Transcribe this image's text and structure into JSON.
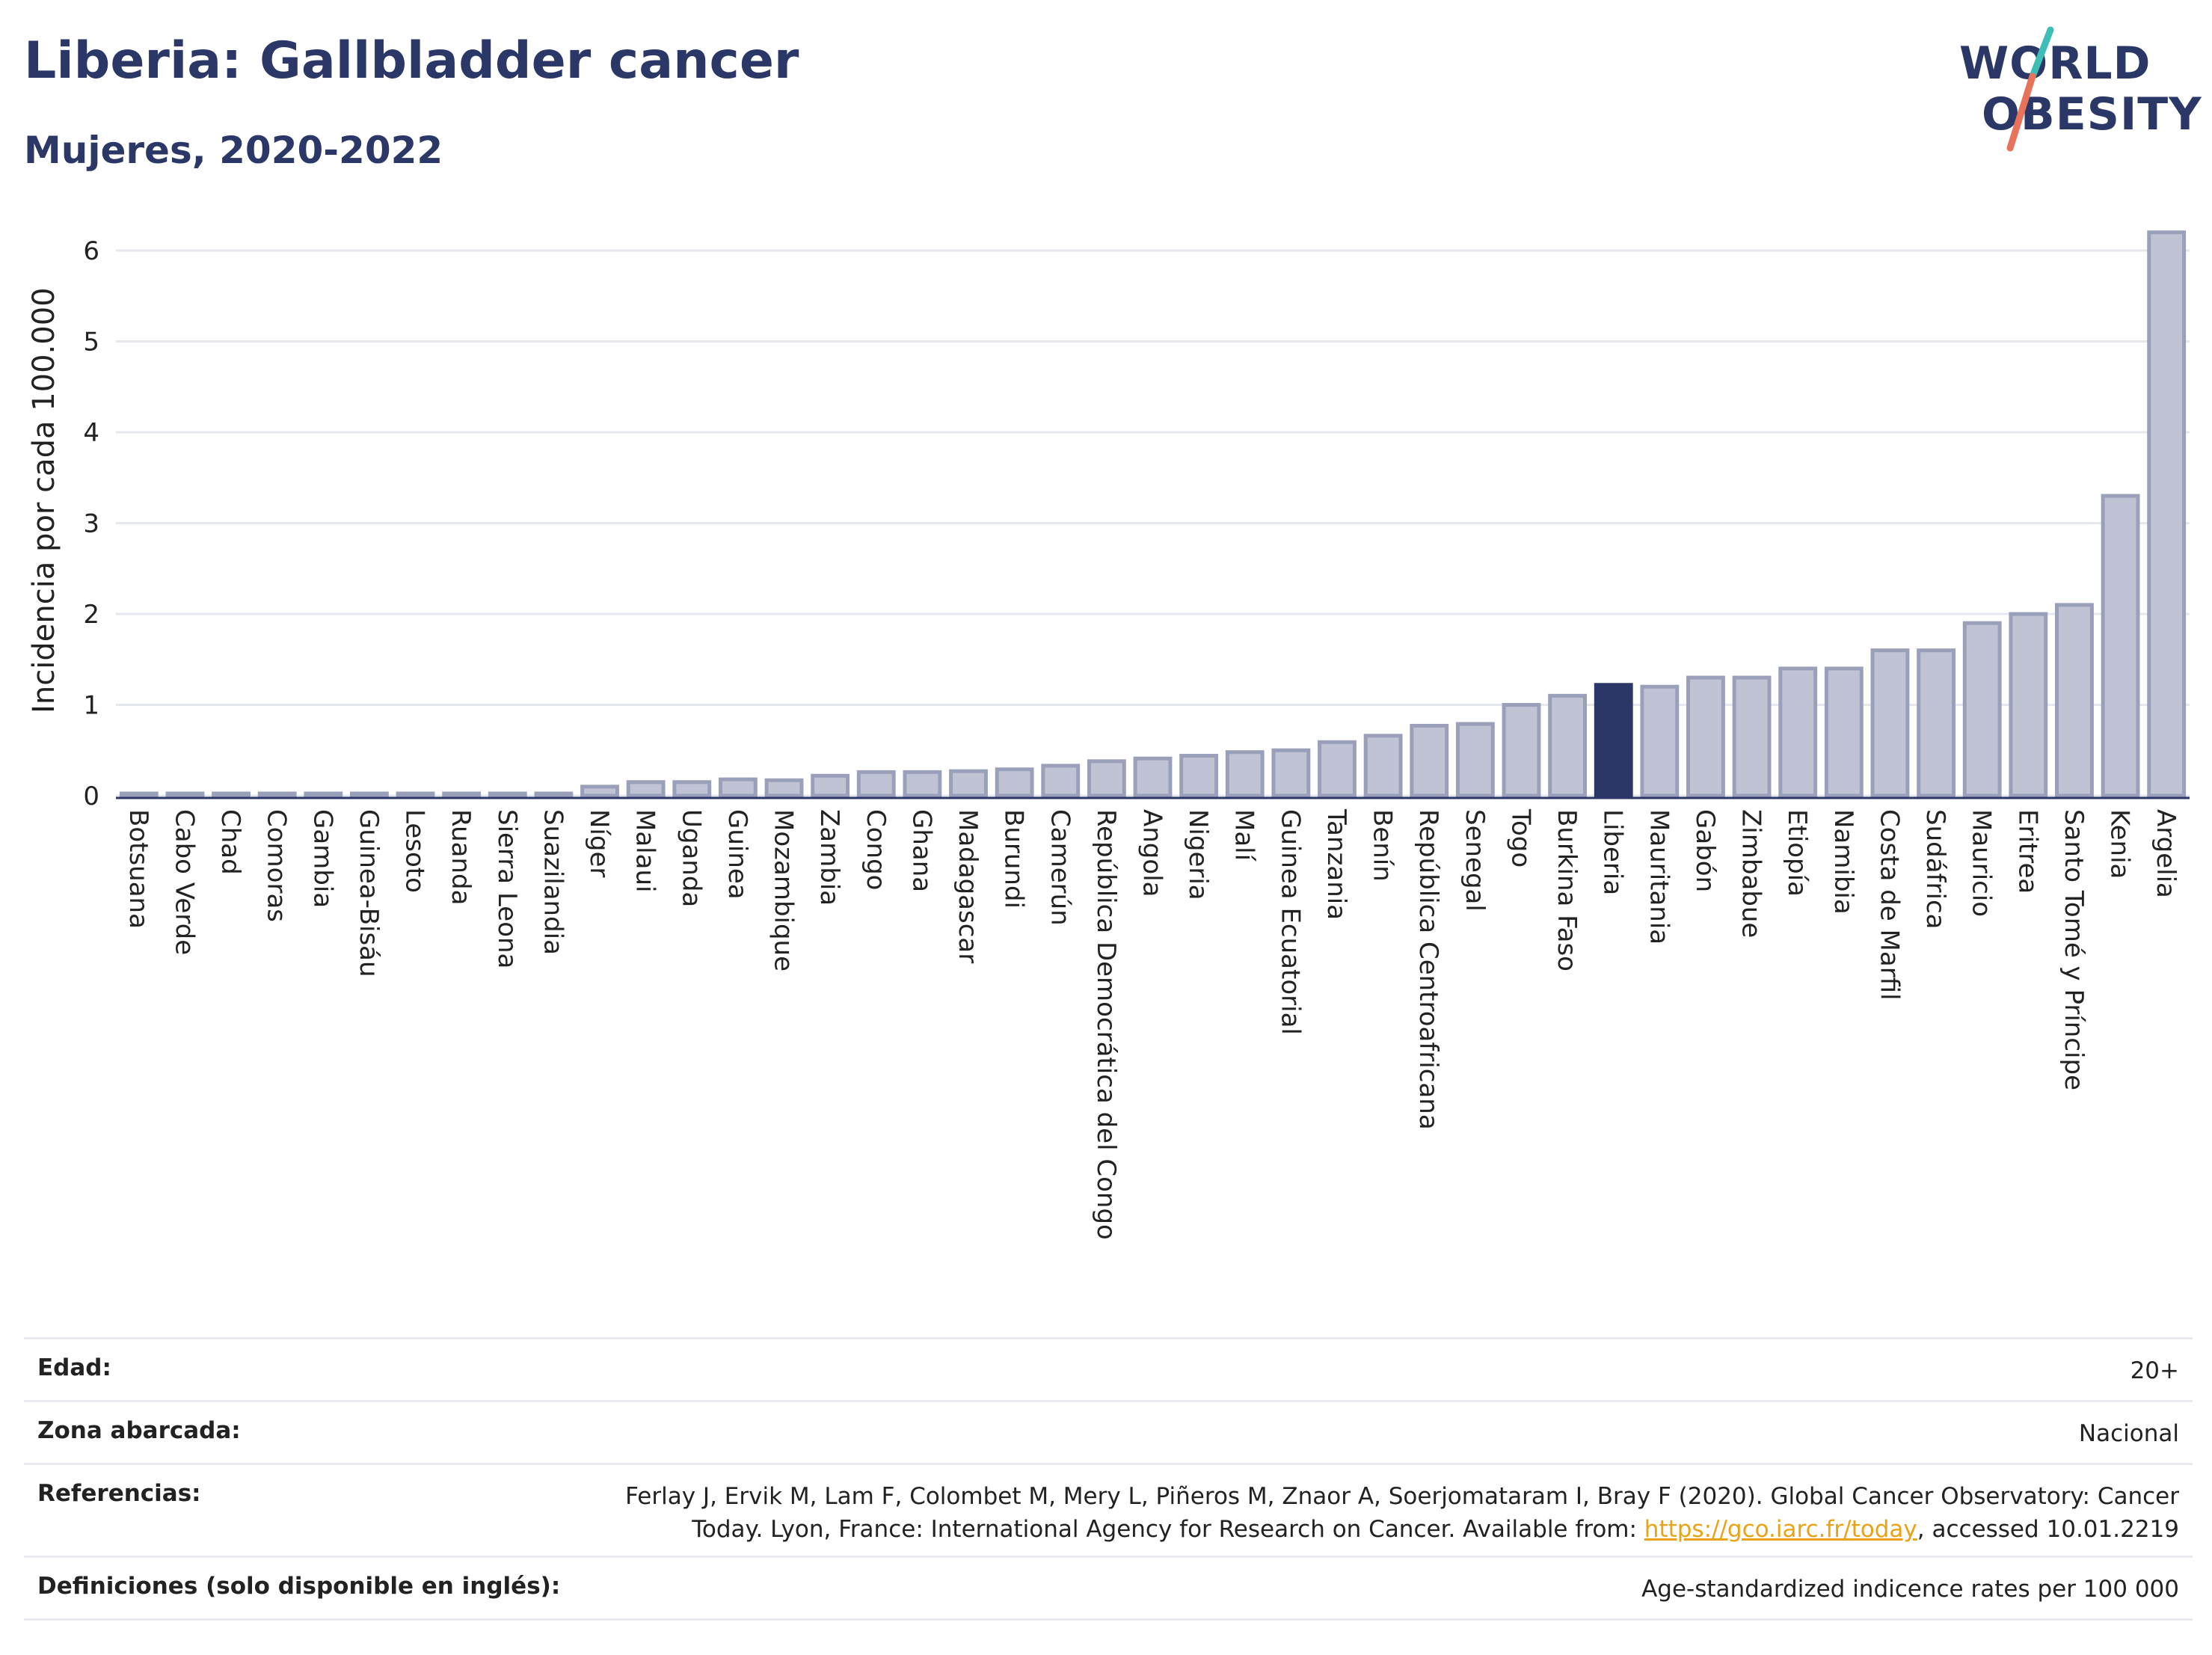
{
  "header": {
    "title": "Liberia: Gallbladder cancer",
    "subtitle": "Mujeres, 2020-2022"
  },
  "logo": {
    "line1": "WORLD",
    "line2": "OBESITY",
    "accent_colors": [
      "#3dbfb8",
      "#e8735a"
    ]
  },
  "chart_data": {
    "type": "bar",
    "ylabel": "Incidencia por cada 100.000",
    "ylim": [
      0,
      6.5
    ],
    "yticks": [
      0,
      1,
      2,
      3,
      4,
      5,
      6
    ],
    "highlight": "Liberia",
    "colors": {
      "bar": "#bfc3d3",
      "bar_edge": "#9aa0b9",
      "highlight": "#2b3766",
      "grid": "#e6e8ef"
    },
    "categories": [
      "Botsuana",
      "Cabo Verde",
      "Chad",
      "Comoras",
      "Gambia",
      "Guinea-Bisáu",
      "Lesoto",
      "Ruanda",
      "Sierra Leona",
      "Suazilandia",
      "Níger",
      "Malaui",
      "Uganda",
      "Guinea",
      "Mozambique",
      "Zambia",
      "Congo",
      "Ghana",
      "Madagascar",
      "Burundi",
      "Camerún",
      "República Democrática del Congo",
      "Angola",
      "Nigeria",
      "Malí",
      "Guinea Ecuatorial",
      "Tanzania",
      "Benín",
      "República Centroafricana",
      "Senegal",
      "Togo",
      "Burkina Faso",
      "Liberia",
      "Mauritania",
      "Gabón",
      "Zimbabue",
      "Etiopía",
      "Namibia",
      "Costa de Marfil",
      "Sudáfrica",
      "Mauricio",
      "Eritrea",
      "Santo Tomé y Príncipe",
      "Kenia",
      "Argelia"
    ],
    "values": [
      0.02,
      0.02,
      0.02,
      0.02,
      0.02,
      0.02,
      0.02,
      0.02,
      0.02,
      0.02,
      0.1,
      0.15,
      0.15,
      0.18,
      0.17,
      0.22,
      0.26,
      0.26,
      0.27,
      0.29,
      0.33,
      0.38,
      0.41,
      0.44,
      0.48,
      0.5,
      0.59,
      0.66,
      0.77,
      0.79,
      1.0,
      1.1,
      1.22,
      1.2,
      1.3,
      1.3,
      1.4,
      1.4,
      1.6,
      1.6,
      1.9,
      2.0,
      2.1,
      3.3,
      6.2
    ]
  },
  "info": {
    "rows": [
      {
        "key": "Edad:",
        "value": "20+"
      },
      {
        "key": "Zona abarcada:",
        "value": "Nacional"
      },
      {
        "key": "Referencias:",
        "value_line1": "Ferlay J, Ervik M, Lam F, Colombet M, Mery L, Piñeros M, Znaor A, Soerjomataram I, Bray F (2020). Global Cancer Observatory: Cancer",
        "value_line2_pre": "Today. Lyon, France: International Agency for Research on Cancer. Available from: ",
        "value_link": "https://gco.iarc.fr/today",
        "value_line2_post": ", accessed 10.01.2219"
      },
      {
        "key": "Definiciones (solo disponible en inglés):",
        "value": "Age-standardized indicence rates per 100 000"
      }
    ]
  }
}
